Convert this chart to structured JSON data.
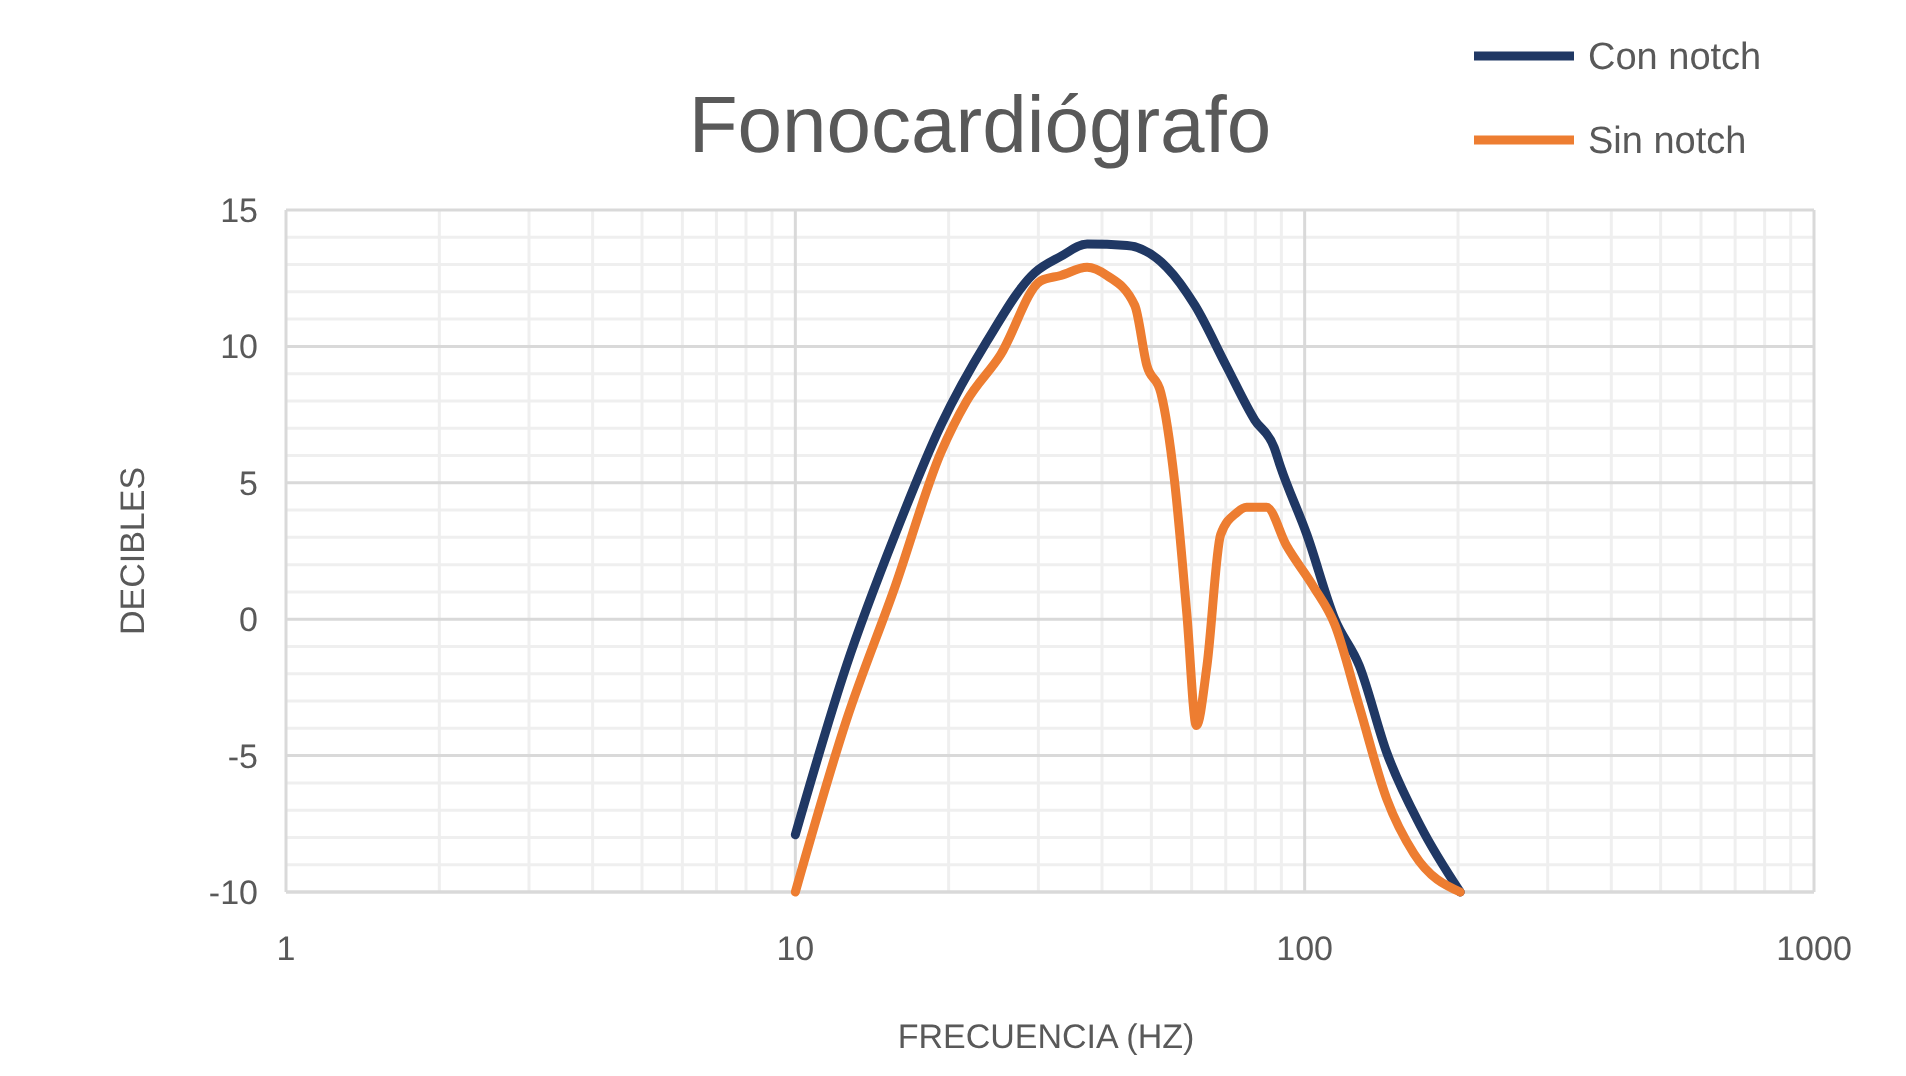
{
  "chart_data": {
    "type": "line",
    "title": "Fonocardiógrafo",
    "xlabel": "FRECUENCIA (HZ)",
    "ylabel": "DECIBLES",
    "log": "x",
    "grid": true,
    "legend": "top right",
    "marker": "none",
    "line_style": "solid",
    "xlim": [
      1,
      1000
    ],
    "xticks": [
      1,
      10,
      100,
      1000
    ],
    "ylim": [
      -10,
      15
    ],
    "yticks": [
      -10,
      -5,
      0,
      5,
      10,
      15
    ],
    "series": [
      {
        "name": "Con notch",
        "color": "#203864",
        "x": [
          10,
          12.6,
          15.7,
          19.3,
          23.8,
          29.5,
          33.2,
          37.4,
          44.8,
          53.6,
          60.9,
          70.1,
          79.8,
          87.1,
          89.6,
          101,
          114.6,
          128,
          145,
          169,
          202
        ],
        "values": [
          -7.9,
          -1.7,
          3.1,
          7.1,
          10.2,
          12.7,
          13.3,
          13.75,
          13.7,
          12.9,
          11.5,
          9.3,
          7.3,
          6.3,
          5.6,
          3.1,
          0,
          -1.7,
          -4.9,
          -7.6,
          -10
        ]
      },
      {
        "name": "Sin notch",
        "color": "#ed7d31",
        "x": [
          10,
          12.6,
          15.7,
          19.3,
          21.7,
          25.3,
          30.3,
          33.2,
          37.4,
          40.9,
          46.4,
          49,
          52.2,
          55.5,
          58.7,
          61.3,
          64.3,
          68.4,
          73.5,
          76.9,
          84.2,
          92.1,
          104,
          114.6,
          128,
          145,
          164,
          202
        ],
        "values": [
          -10,
          -3.7,
          1.2,
          6.1,
          8,
          9.7,
          12.4,
          12.6,
          12.9,
          12.6,
          11.5,
          9.3,
          8.3,
          5.1,
          0.2,
          -3.9,
          -1.7,
          3.1,
          3.9,
          4.1,
          4.1,
          2.7,
          1.2,
          -0.2,
          -3.2,
          -6.6,
          -8.6,
          -10
        ]
      }
    ]
  }
}
